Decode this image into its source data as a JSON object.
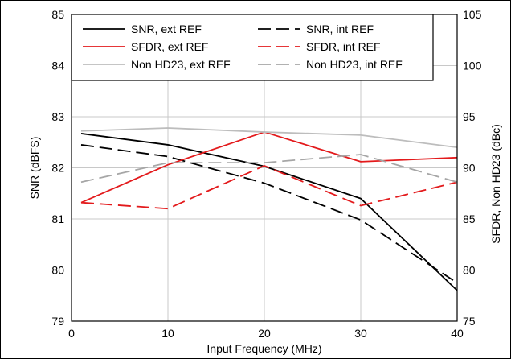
{
  "chart_data": {
    "type": "line",
    "xlabel": "Input Frequency (MHz)",
    "ylabel_left": "SNR (dBFS)",
    "ylabel_right": "SFDR, Non HD23 (dBc)",
    "xlim": [
      0,
      40
    ],
    "ylim_left": [
      79,
      85
    ],
    "ylim_right": [
      75,
      105
    ],
    "x_ticks": [
      "0",
      "10",
      "20",
      "30",
      "40"
    ],
    "y_left_ticks": [
      "79",
      "80",
      "81",
      "82",
      "83",
      "84",
      "85"
    ],
    "y_right_ticks": [
      "75",
      "80",
      "85",
      "90",
      "95",
      "100",
      "105"
    ],
    "grid": true,
    "legend_position": "top",
    "series": [
      {
        "name": "SNR, ext REF",
        "axis": "left",
        "color": "#000000",
        "dash": "solid",
        "x": [
          1,
          10,
          20,
          30,
          40
        ],
        "y": [
          82.67,
          82.45,
          82.03,
          81.4,
          79.6
        ]
      },
      {
        "name": "SNR, int REF",
        "axis": "left",
        "color": "#000000",
        "dash": "dashed",
        "x": [
          1,
          10,
          20,
          30,
          40
        ],
        "y": [
          82.45,
          82.22,
          81.7,
          80.98,
          79.75
        ]
      },
      {
        "name": "SFDR, ext REF",
        "axis": "right",
        "color": "#e31a1c",
        "dash": "solid",
        "x": [
          1,
          10,
          20,
          30,
          40
        ],
        "y": [
          86.6,
          90.3,
          93.5,
          90.6,
          91.0
        ]
      },
      {
        "name": "SFDR, int REF",
        "axis": "right",
        "color": "#e31a1c",
        "dash": "dashed",
        "x": [
          1,
          10,
          20,
          30,
          40
        ],
        "y": [
          86.6,
          86.0,
          90.2,
          86.3,
          88.6
        ]
      },
      {
        "name": "Non HD23, ext REF",
        "axis": "right",
        "color": "#bdbdbd",
        "dash": "solid",
        "x": [
          1,
          10,
          20,
          30,
          40
        ],
        "y": [
          93.6,
          93.9,
          93.5,
          93.2,
          92.0
        ]
      },
      {
        "name": "Non HD23, int REF",
        "axis": "right",
        "color": "#a6a6a6",
        "dash": "dashed",
        "x": [
          1,
          10,
          20,
          30,
          40
        ],
        "y": [
          88.6,
          90.5,
          90.5,
          91.3,
          88.6
        ]
      }
    ]
  }
}
